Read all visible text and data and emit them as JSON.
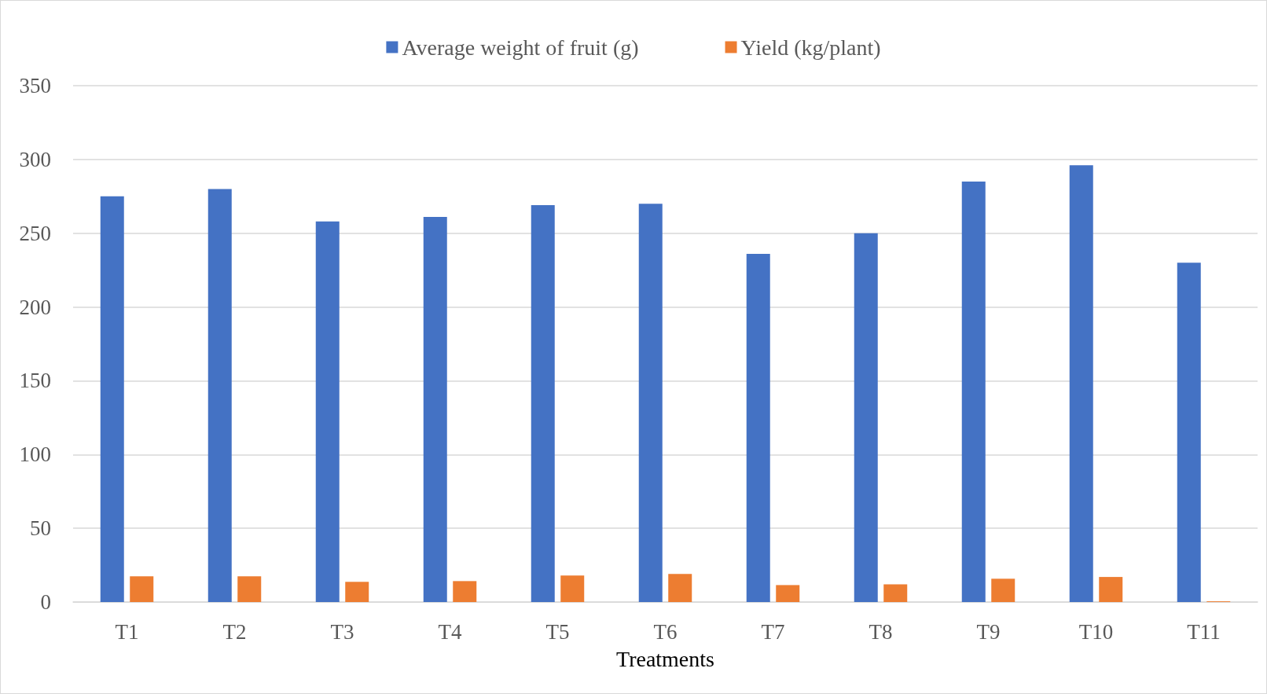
{
  "chart_data": {
    "type": "bar",
    "xlabel": "Treatments",
    "categories": [
      "T1",
      "T2",
      "T3",
      "T4",
      "T5",
      "T6",
      "T7",
      "T8",
      "T9",
      "T10",
      "T11"
    ],
    "series": [
      {
        "name": "Average weight of fruit (g)",
        "color": "#4472c4",
        "values": [
          275,
          280,
          258,
          261,
          269,
          270,
          236,
          250,
          285,
          296,
          230
        ]
      },
      {
        "name": "Yield (kg/plant)",
        "color": "#ed7d31",
        "values": [
          17.5,
          17.5,
          13.7,
          14.2,
          18,
          19,
          11.5,
          12,
          15.8,
          17,
          0.5
        ]
      }
    ],
    "ylim": [
      0,
      350
    ],
    "yticks": [
      0,
      50,
      100,
      150,
      200,
      250,
      300,
      350
    ],
    "grid": "y",
    "legend": "top"
  }
}
